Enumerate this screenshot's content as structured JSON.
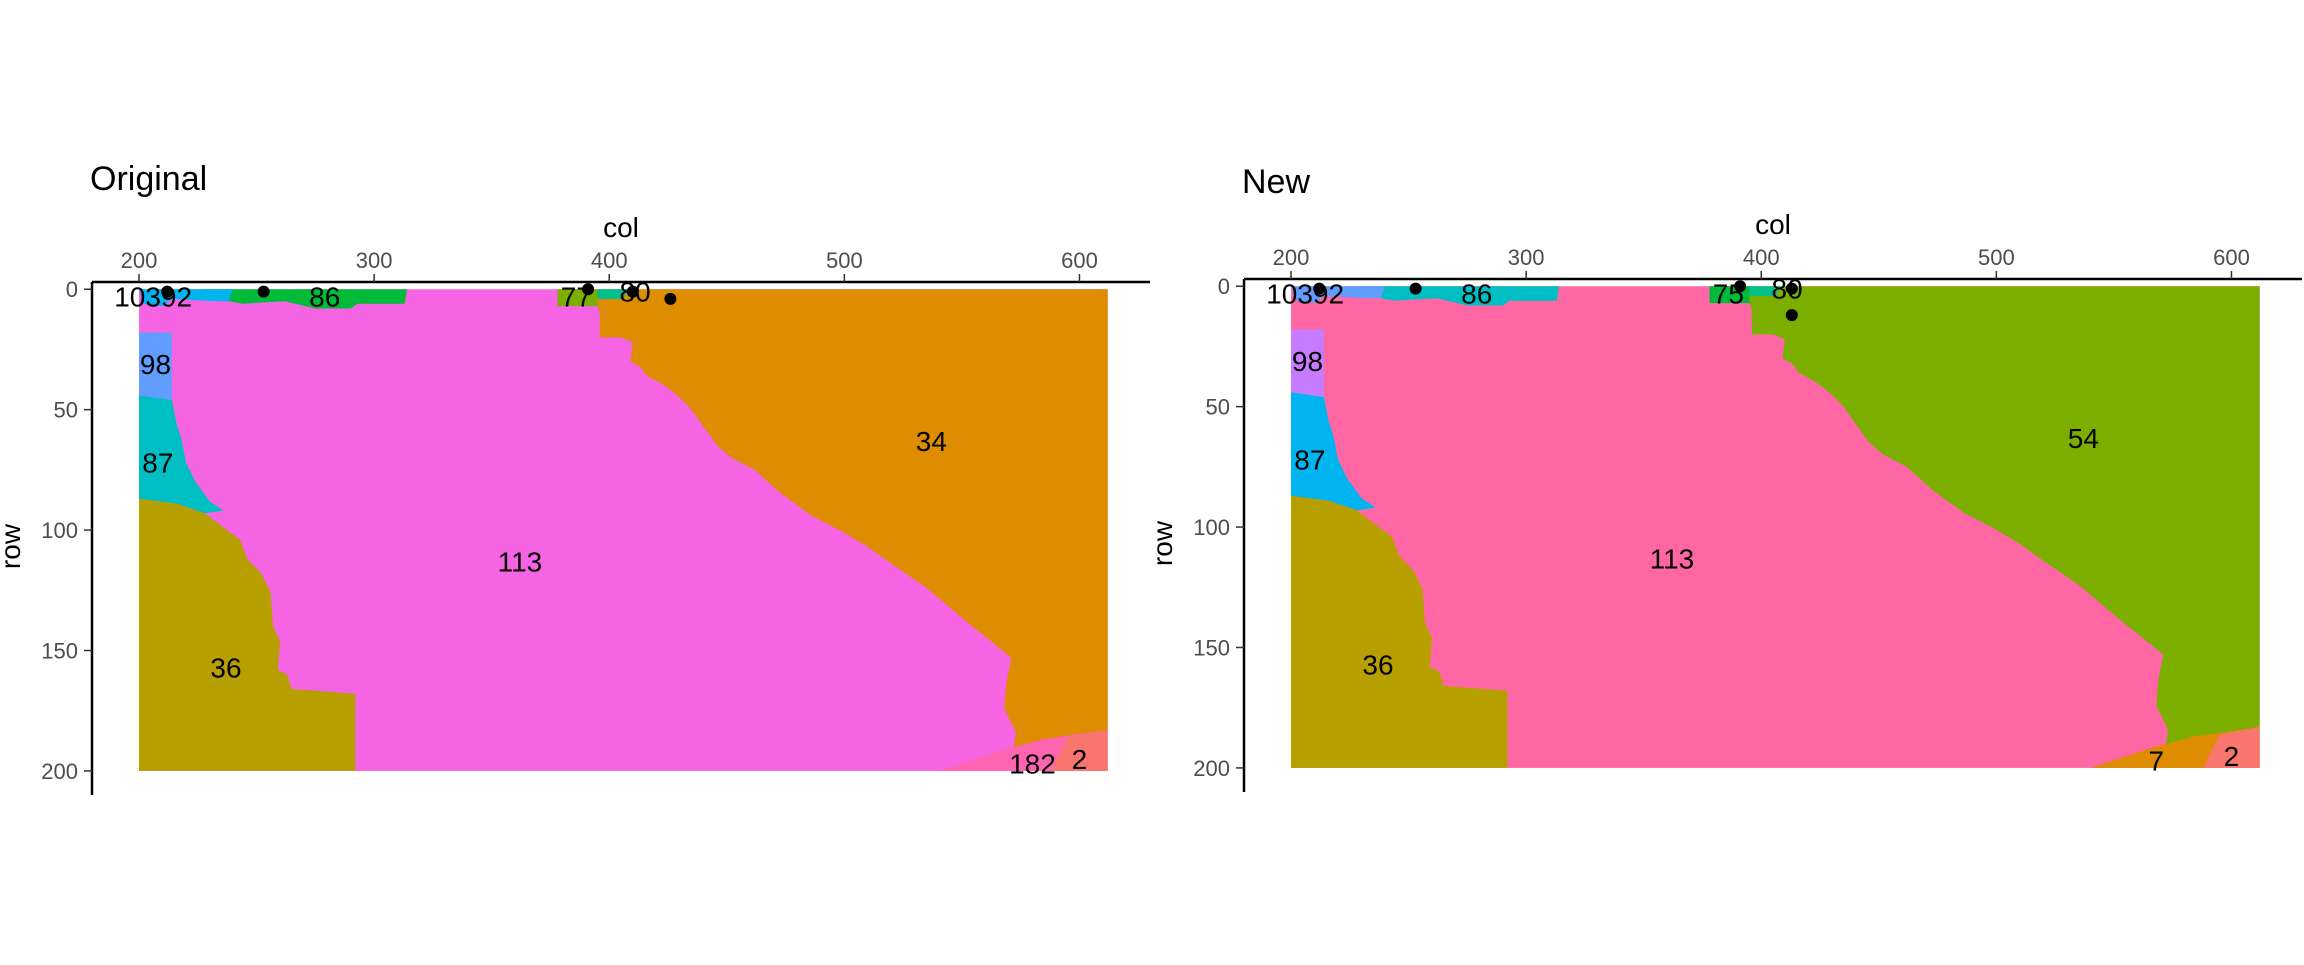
{
  "chart_data": [
    {
      "type": "map",
      "title": "Original",
      "xlabel": "col",
      "ylabel": "row",
      "xlim": [
        180,
        630
      ],
      "ylim": [
        210,
        -3
      ],
      "xticks": [
        200,
        300,
        400,
        500,
        600
      ],
      "yticks": [
        0,
        50,
        100,
        150,
        200
      ],
      "extent": {
        "col": [
          200,
          612
        ],
        "row": [
          0,
          200
        ]
      },
      "regions": [
        {
          "label": "113",
          "color": "#F564E3",
          "label_at": [
            362,
            113
          ]
        },
        {
          "label": "34",
          "color": "#DE8C00",
          "label_at": [
            537,
            63
          ]
        },
        {
          "label": "36",
          "color": "#B79F00",
          "label_at": [
            237,
            157
          ]
        },
        {
          "label": "87",
          "color": "#00BFC4",
          "label_at": [
            208,
            72
          ]
        },
        {
          "label": "98",
          "color": "#619CFF",
          "label_at": [
            207,
            31
          ]
        },
        {
          "label": "86",
          "color": "#00BA38",
          "label_at": [
            279,
            3
          ]
        },
        {
          "label": "77",
          "color": "#7CAE00",
          "label_at": [
            386,
            3
          ]
        },
        {
          "label": "80",
          "color": "#00C08B",
          "label_at": [
            411,
            1
          ]
        },
        {
          "label": "10392",
          "color": "#00B4F0",
          "label_at": [
            206,
            3
          ]
        },
        {
          "label": "182",
          "color": "#FF64B0",
          "label_at": [
            580,
            197
          ]
        },
        {
          "label": "2",
          "color": "#F8766D",
          "label_at": [
            600,
            195
          ]
        }
      ],
      "points": [
        {
          "col": 212,
          "row": 1
        },
        {
          "col": 253,
          "row": 1
        },
        {
          "col": 391,
          "row": 0
        },
        {
          "col": 410,
          "row": 1
        },
        {
          "col": 426,
          "row": 4
        }
      ]
    },
    {
      "type": "map",
      "title": "New",
      "xlabel": "col",
      "ylabel": "row",
      "xlim": [
        180,
        630
      ],
      "ylim": [
        210,
        -3
      ],
      "xticks": [
        200,
        300,
        400,
        500,
        600
      ],
      "yticks": [
        0,
        50,
        100,
        150,
        200
      ],
      "extent": {
        "col": [
          200,
          612
        ],
        "row": [
          0,
          200
        ]
      },
      "regions": [
        {
          "label": "113",
          "color": "#FF67A4",
          "label_at": [
            362,
            113
          ]
        },
        {
          "label": "54",
          "color": "#7CAE00",
          "label_at": [
            537,
            63
          ]
        },
        {
          "label": "36",
          "color": "#B79F00",
          "label_at": [
            237,
            157
          ]
        },
        {
          "label": "87",
          "color": "#00B4F0",
          "label_at": [
            208,
            72
          ]
        },
        {
          "label": "98",
          "color": "#C77CFF",
          "label_at": [
            207,
            31
          ]
        },
        {
          "label": "86",
          "color": "#00BFC4",
          "label_at": [
            279,
            3
          ]
        },
        {
          "label": "75",
          "color": "#00BA38",
          "label_at": [
            386,
            3
          ]
        },
        {
          "label": "80",
          "color": "#00C08B",
          "label_at": [
            411,
            1
          ]
        },
        {
          "label": "10392",
          "color": "#619CFF",
          "label_at": [
            206,
            3
          ]
        },
        {
          "label": "7",
          "color": "#DE8C00",
          "label_at": [
            568,
            197
          ]
        },
        {
          "label": "2",
          "color": "#F8766D",
          "label_at": [
            600,
            195
          ]
        }
      ],
      "points": [
        {
          "col": 212,
          "row": 1
        },
        {
          "col": 253,
          "row": 1
        },
        {
          "col": 391,
          "row": 0
        },
        {
          "col": 413,
          "row": 1
        },
        {
          "col": 413,
          "row": 12
        }
      ]
    }
  ]
}
